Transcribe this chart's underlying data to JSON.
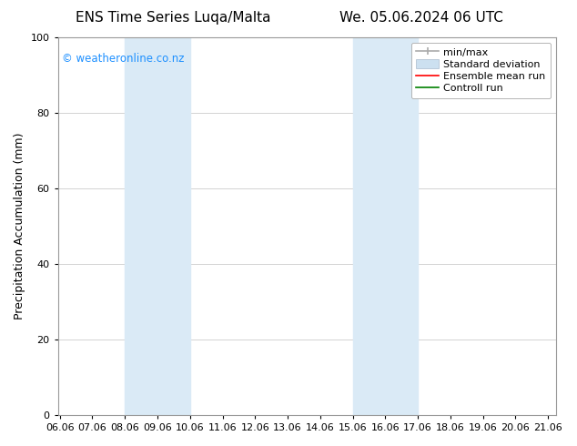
{
  "title_left": "ENS Time Series Luqa/Malta",
  "title_right": "We. 05.06.2024 06 UTC",
  "ylabel": "Precipitation Accumulation (mm)",
  "xlim_min": 6.0,
  "xlim_max": 21.3,
  "ylim": [
    0,
    100
  ],
  "yticks": [
    0,
    20,
    40,
    60,
    80,
    100
  ],
  "xtick_positions": [
    6.06,
    7.06,
    8.06,
    9.06,
    10.06,
    11.06,
    12.06,
    13.06,
    14.06,
    15.06,
    16.06,
    17.06,
    18.06,
    19.06,
    20.06,
    21.06
  ],
  "xtick_labels": [
    "06.06",
    "07.06",
    "08.06",
    "09.06",
    "10.06",
    "11.06",
    "12.06",
    "13.06",
    "14.06",
    "15.06",
    "16.06",
    "17.06",
    "18.06",
    "19.06",
    "20.06",
    "21.06"
  ],
  "shaded_regions": [
    {
      "xmin": 8.06,
      "xmax": 10.06,
      "color": "#daeaf6"
    },
    {
      "xmin": 15.06,
      "xmax": 17.06,
      "color": "#daeaf6"
    }
  ],
  "watermark_text": "© weatheronline.co.nz",
  "watermark_color": "#1e90ff",
  "bg_color": "#ffffff",
  "plot_bg_color": "#ffffff",
  "legend_labels": [
    "min/max",
    "Standard deviation",
    "Ensemble mean run",
    "Controll run"
  ],
  "legend_colors": [
    "#aaaaaa",
    "#cce0f0",
    "#ff0000",
    "#008000"
  ],
  "grid_color": "#cccccc",
  "tick_fontsize": 8,
  "ylabel_fontsize": 9,
  "title_fontsize": 11,
  "legend_fontsize": 8
}
